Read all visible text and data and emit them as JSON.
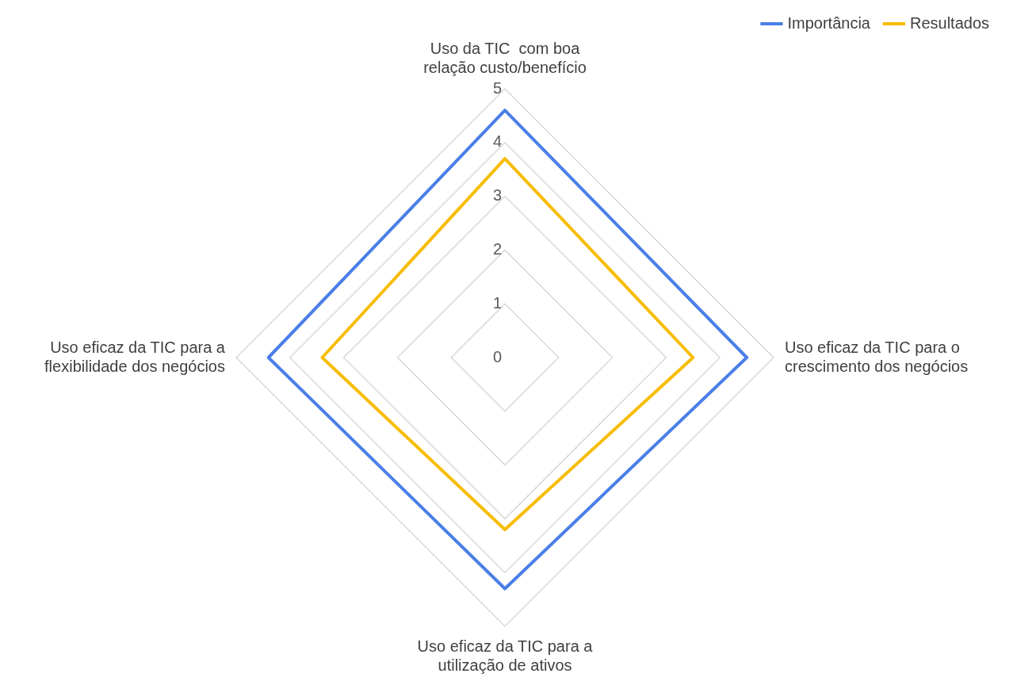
{
  "chart_data": {
    "type": "radar",
    "categories": [
      "Uso da TIC  com boa relação custo/benefício",
      "Uso eficaz da TIC para o crescimento dos negócios",
      "Uso eficaz da TIC para a utilização de ativos",
      "Uso eficaz da TIC para a flexibilidade dos negócios"
    ],
    "series": [
      {
        "name": "Importância",
        "color": "#4a7fe8",
        "values": [
          4.6,
          4.5,
          4.3,
          4.4
        ]
      },
      {
        "name": "Resultados",
        "color": "#f7bc00",
        "values": [
          3.7,
          3.5,
          3.2,
          3.4
        ]
      }
    ],
    "ylim": [
      0,
      5
    ],
    "yticks": [
      0,
      1,
      2,
      3,
      4,
      5
    ],
    "grid": true,
    "legend": "top right",
    "marker": "none"
  }
}
